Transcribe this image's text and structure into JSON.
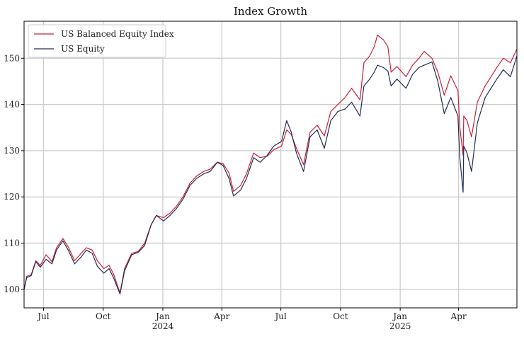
{
  "chart_data": {
    "type": "line",
    "title": "Index Growth",
    "xlabel": "",
    "ylabel": "",
    "x_range": [
      "2023-06-01",
      "2025-06-30"
    ],
    "ylim": [
      96,
      158
    ],
    "grid": true,
    "legend_placement": "top-left",
    "x_ticks": [
      {
        "date": "2023-07-01",
        "label": "Jul",
        "sublabel": ""
      },
      {
        "date": "2023-10-01",
        "label": "Oct",
        "sublabel": ""
      },
      {
        "date": "2024-01-01",
        "label": "Jan",
        "sublabel": "2024"
      },
      {
        "date": "2024-04-01",
        "label": "Apr",
        "sublabel": ""
      },
      {
        "date": "2024-07-01",
        "label": "Jul",
        "sublabel": ""
      },
      {
        "date": "2024-10-01",
        "label": "Oct",
        "sublabel": ""
      },
      {
        "date": "2025-01-01",
        "label": "Jan",
        "sublabel": "2025"
      },
      {
        "date": "2025-04-01",
        "label": "Apr",
        "sublabel": ""
      }
    ],
    "y_ticks": [
      100,
      110,
      120,
      130,
      140,
      150
    ],
    "colors": {
      "balanced": "#c8203a",
      "equity": "#232c4f",
      "grid": "#cccccc",
      "axis": "#000000"
    },
    "series": [
      {
        "name": "US Balanced Equity Index",
        "color": "#c8203a",
        "points": [
          [
            "2023-06-01",
            100.0
          ],
          [
            "2023-06-05",
            102.8
          ],
          [
            "2023-06-12",
            103.2
          ],
          [
            "2023-06-19",
            106.2
          ],
          [
            "2023-06-26",
            105.2
          ],
          [
            "2023-07-05",
            107.5
          ],
          [
            "2023-07-14",
            106.0
          ],
          [
            "2023-07-21",
            109.0
          ],
          [
            "2023-07-31",
            111.0
          ],
          [
            "2023-08-08",
            109.2
          ],
          [
            "2023-08-18",
            106.2
          ],
          [
            "2023-08-28",
            107.8
          ],
          [
            "2023-09-05",
            109.0
          ],
          [
            "2023-09-14",
            108.5
          ],
          [
            "2023-09-22",
            106.2
          ],
          [
            "2023-10-02",
            104.5
          ],
          [
            "2023-10-10",
            105.2
          ],
          [
            "2023-10-17",
            103.3
          ],
          [
            "2023-10-27",
            99.2
          ],
          [
            "2023-11-03",
            104.5
          ],
          [
            "2023-11-14",
            107.8
          ],
          [
            "2023-11-24",
            108.2
          ],
          [
            "2023-12-04",
            110.0
          ],
          [
            "2023-12-14",
            114.0
          ],
          [
            "2023-12-22",
            116.0
          ],
          [
            "2024-01-02",
            115.5
          ],
          [
            "2024-01-12",
            116.5
          ],
          [
            "2024-01-22",
            118.0
          ],
          [
            "2024-02-01",
            120.0
          ],
          [
            "2024-02-12",
            123.0
          ],
          [
            "2024-02-22",
            124.5
          ],
          [
            "2024-03-04",
            125.5
          ],
          [
            "2024-03-14",
            126.0
          ],
          [
            "2024-03-25",
            127.5
          ],
          [
            "2024-04-03",
            127.2
          ],
          [
            "2024-04-12",
            125.2
          ],
          [
            "2024-04-19",
            121.2
          ],
          [
            "2024-04-30",
            122.5
          ],
          [
            "2024-05-09",
            125.0
          ],
          [
            "2024-05-20",
            129.5
          ],
          [
            "2024-05-30",
            128.5
          ],
          [
            "2024-06-10",
            128.8
          ],
          [
            "2024-06-20",
            130.2
          ],
          [
            "2024-07-02",
            131.0
          ],
          [
            "2024-07-10",
            134.5
          ],
          [
            "2024-07-17",
            133.5
          ],
          [
            "2024-07-25",
            130.5
          ],
          [
            "2024-08-05",
            127.0
          ],
          [
            "2024-08-15",
            134.0
          ],
          [
            "2024-08-26",
            135.5
          ],
          [
            "2024-09-06",
            133.2
          ],
          [
            "2024-09-16",
            138.5
          ],
          [
            "2024-09-27",
            140.0
          ],
          [
            "2024-10-08",
            141.5
          ],
          [
            "2024-10-18",
            143.5
          ],
          [
            "2024-10-31",
            141.0
          ],
          [
            "2024-11-06",
            149.0
          ],
          [
            "2024-11-15",
            150.5
          ],
          [
            "2024-11-22",
            152.5
          ],
          [
            "2024-11-27",
            155.0
          ],
          [
            "2024-12-06",
            154.0
          ],
          [
            "2024-12-13",
            152.5
          ],
          [
            "2024-12-18",
            147.0
          ],
          [
            "2024-12-27",
            148.2
          ],
          [
            "2025-01-10",
            146.0
          ],
          [
            "2025-01-20",
            148.5
          ],
          [
            "2025-01-30",
            150.0
          ],
          [
            "2025-02-07",
            151.5
          ],
          [
            "2025-02-19",
            150.0
          ],
          [
            "2025-02-28",
            147.0
          ],
          [
            "2025-03-10",
            142.0
          ],
          [
            "2025-03-20",
            146.2
          ],
          [
            "2025-03-31",
            143.0
          ],
          [
            "2025-04-03",
            135.0
          ],
          [
            "2025-04-08",
            129.0
          ],
          [
            "2025-04-09",
            137.5
          ],
          [
            "2025-04-14",
            136.5
          ],
          [
            "2025-04-21",
            133.0
          ],
          [
            "2025-04-30",
            140.5
          ],
          [
            "2025-05-12",
            144.0
          ],
          [
            "2025-05-21",
            146.0
          ],
          [
            "2025-05-30",
            148.0
          ],
          [
            "2025-06-09",
            150.0
          ],
          [
            "2025-06-20",
            149.0
          ],
          [
            "2025-06-30",
            152.0
          ]
        ]
      },
      {
        "name": "US Equity",
        "color": "#232c4f",
        "points": [
          [
            "2023-06-01",
            100.0
          ],
          [
            "2023-06-05",
            102.5
          ],
          [
            "2023-06-12",
            103.0
          ],
          [
            "2023-06-19",
            106.0
          ],
          [
            "2023-06-26",
            104.8
          ],
          [
            "2023-07-05",
            106.5
          ],
          [
            "2023-07-14",
            105.5
          ],
          [
            "2023-07-21",
            108.5
          ],
          [
            "2023-07-31",
            110.5
          ],
          [
            "2023-08-08",
            108.5
          ],
          [
            "2023-08-18",
            105.5
          ],
          [
            "2023-08-28",
            107.0
          ],
          [
            "2023-09-05",
            108.5
          ],
          [
            "2023-09-14",
            107.8
          ],
          [
            "2023-09-22",
            105.0
          ],
          [
            "2023-10-02",
            103.5
          ],
          [
            "2023-10-10",
            104.5
          ],
          [
            "2023-10-17",
            102.5
          ],
          [
            "2023-10-27",
            99.0
          ],
          [
            "2023-11-03",
            104.0
          ],
          [
            "2023-11-14",
            107.5
          ],
          [
            "2023-11-24",
            108.0
          ],
          [
            "2023-12-04",
            109.5
          ],
          [
            "2023-12-14",
            114.0
          ],
          [
            "2023-12-22",
            116.0
          ],
          [
            "2024-01-02",
            114.8
          ],
          [
            "2024-01-12",
            116.0
          ],
          [
            "2024-01-22",
            117.5
          ],
          [
            "2024-02-01",
            119.5
          ],
          [
            "2024-02-12",
            122.5
          ],
          [
            "2024-02-22",
            124.0
          ],
          [
            "2024-03-04",
            125.0
          ],
          [
            "2024-03-14",
            125.5
          ],
          [
            "2024-03-25",
            127.5
          ],
          [
            "2024-04-03",
            126.8
          ],
          [
            "2024-04-12",
            124.0
          ],
          [
            "2024-04-19",
            120.2
          ],
          [
            "2024-04-30",
            121.5
          ],
          [
            "2024-05-09",
            124.0
          ],
          [
            "2024-05-20",
            128.5
          ],
          [
            "2024-05-30",
            127.5
          ],
          [
            "2024-06-10",
            129.0
          ],
          [
            "2024-06-20",
            131.0
          ],
          [
            "2024-07-02",
            132.0
          ],
          [
            "2024-07-10",
            136.5
          ],
          [
            "2024-07-17",
            134.0
          ],
          [
            "2024-07-25",
            129.5
          ],
          [
            "2024-08-05",
            125.5
          ],
          [
            "2024-08-15",
            133.0
          ],
          [
            "2024-08-26",
            134.5
          ],
          [
            "2024-09-06",
            130.5
          ],
          [
            "2024-09-16",
            136.5
          ],
          [
            "2024-09-27",
            138.5
          ],
          [
            "2024-10-08",
            139.0
          ],
          [
            "2024-10-18",
            140.5
          ],
          [
            "2024-10-31",
            137.5
          ],
          [
            "2024-11-06",
            144.0
          ],
          [
            "2024-11-15",
            145.5
          ],
          [
            "2024-11-22",
            147.0
          ],
          [
            "2024-11-27",
            148.5
          ],
          [
            "2024-12-06",
            148.0
          ],
          [
            "2024-12-13",
            147.2
          ],
          [
            "2024-12-18",
            144.0
          ],
          [
            "2024-12-27",
            145.5
          ],
          [
            "2025-01-10",
            143.5
          ],
          [
            "2025-01-20",
            146.5
          ],
          [
            "2025-01-30",
            148.0
          ],
          [
            "2025-02-07",
            148.5
          ],
          [
            "2025-02-19",
            149.2
          ],
          [
            "2025-02-28",
            145.0
          ],
          [
            "2025-03-10",
            138.0
          ],
          [
            "2025-03-20",
            141.5
          ],
          [
            "2025-03-31",
            137.5
          ],
          [
            "2025-04-03",
            128.5
          ],
          [
            "2025-04-08",
            121.0
          ],
          [
            "2025-04-09",
            131.0
          ],
          [
            "2025-04-14",
            129.5
          ],
          [
            "2025-04-21",
            125.5
          ],
          [
            "2025-04-30",
            136.0
          ],
          [
            "2025-05-12",
            141.5
          ],
          [
            "2025-05-21",
            143.5
          ],
          [
            "2025-05-30",
            145.5
          ],
          [
            "2025-06-09",
            147.5
          ],
          [
            "2025-06-20",
            146.0
          ],
          [
            "2025-06-30",
            150.5
          ]
        ]
      }
    ]
  }
}
